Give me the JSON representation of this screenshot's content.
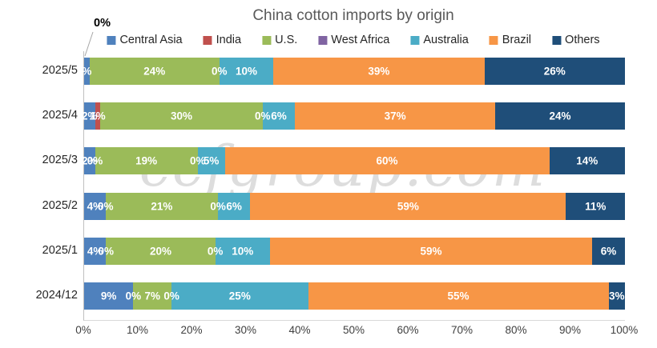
{
  "chart_data": {
    "type": "bar",
    "variant": "100pct-stacked-horizontal",
    "title": "China cotton imports by origin",
    "legend_position": "top",
    "grid": false,
    "xlim": [
      0,
      100
    ],
    "x_ticks": [
      "0%",
      "10%",
      "20%",
      "30%",
      "40%",
      "50%",
      "60%",
      "70%",
      "80%",
      "90%",
      "100%"
    ],
    "categories": [
      "2025/5",
      "2025/4",
      "2025/3",
      "2025/2",
      "2025/1",
      "2024/12"
    ],
    "series": [
      {
        "name": "Central Asia",
        "color": "#4F81BD",
        "values": [
          1,
          2,
          2,
          4,
          4,
          9
        ],
        "labels": [
          "%",
          "2%",
          "2%",
          "4%",
          "4%",
          "9%"
        ]
      },
      {
        "name": "India",
        "color": "#C0504D",
        "values": [
          0,
          1,
          0,
          0,
          0,
          0
        ],
        "labels": [
          "",
          "1%",
          "0%",
          "0%",
          "0%",
          "0%"
        ]
      },
      {
        "name": "U.S.",
        "color": "#9BBB59",
        "values": [
          24,
          30,
          19,
          21,
          20,
          7
        ],
        "labels": [
          "24%",
          "30%",
          "19%",
          "21%",
          "20%",
          "7%"
        ]
      },
      {
        "name": "West Africa",
        "color": "#8064A2",
        "values": [
          0,
          0,
          0,
          0,
          0,
          0
        ],
        "labels": [
          "0%",
          "0%",
          "0%",
          "0%",
          "0%",
          "0%"
        ]
      },
      {
        "name": "Australia",
        "color": "#4BACC6",
        "values": [
          10,
          6,
          5,
          6,
          10,
          25
        ],
        "labels": [
          "10%",
          "6%",
          "5%",
          "6%",
          "10%",
          "25%"
        ]
      },
      {
        "name": "Brazil",
        "color": "#F79646",
        "values": [
          39,
          37,
          60,
          59,
          59,
          55
        ],
        "labels": [
          "39%",
          "37%",
          "60%",
          "59%",
          "59%",
          "55%"
        ]
      },
      {
        "name": "Others",
        "color": "#1F4E79",
        "values": [
          26,
          24,
          14,
          11,
          6,
          3
        ],
        "labels": [
          "26%",
          "24%",
          "14%",
          "11%",
          "6%",
          "3%"
        ]
      }
    ],
    "callout": {
      "text": "0%",
      "target_category": "2025/5",
      "target_series": "India"
    }
  },
  "watermark": {
    "text": "ccfgroup.com"
  }
}
